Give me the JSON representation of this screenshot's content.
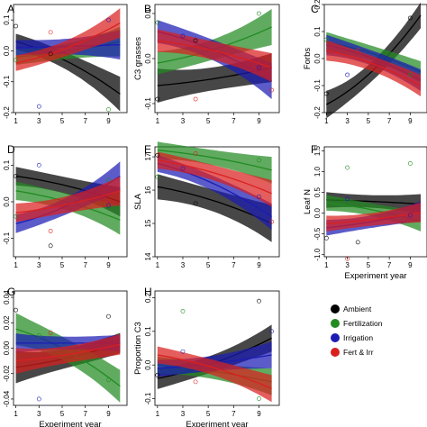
{
  "legend": [
    {
      "name": "Ambient",
      "color": "#000000"
    },
    {
      "name": "Fertilization",
      "color": "#228b22"
    },
    {
      "name": "Irrigation",
      "color": "#1c1cb4"
    },
    {
      "name": "Fert & Irr",
      "color": "#d92020"
    }
  ],
  "chart_data": [
    {
      "type": "line",
      "panel": "A",
      "xlabel": "",
      "ylabel": "",
      "ylim": [
        -0.2,
        0.15
      ],
      "yticks": [
        "-0.2",
        "-0.1",
        "0.0",
        "0.1"
      ],
      "xticks": [
        "1",
        "3",
        "5",
        "7",
        "9"
      ],
      "series": [
        {
          "name": "Ambient",
          "x": [
            1,
            10
          ],
          "y": [
            0.03,
            -0.14
          ],
          "band": [
            0.02,
            0.035
          ]
        },
        {
          "name": "Fertilization",
          "x": [
            1,
            10
          ],
          "y": [
            -0.02,
            0.03
          ],
          "band": [
            0.02,
            0.03
          ]
        },
        {
          "name": "Irrigation",
          "x": [
            1,
            10
          ],
          "y": [
            0.01,
            0.02
          ],
          "band": [
            0.02,
            0.03
          ]
        },
        {
          "name": "Fert & Irr",
          "x": [
            1,
            10
          ],
          "y": [
            -0.04,
            0.09
          ],
          "band": [
            0.02,
            0.03
          ]
        }
      ],
      "points": [
        {
          "x": 1,
          "y": 0.08
        },
        {
          "x": 1,
          "y": -0.03
        },
        {
          "x": 3,
          "y": -0.18
        },
        {
          "x": 4,
          "y": 0.06
        },
        {
          "x": 4,
          "y": -0.01
        },
        {
          "x": 9,
          "y": -0.19
        },
        {
          "x": 9,
          "y": 0.1
        }
      ]
    },
    {
      "type": "line",
      "panel": "B",
      "xlabel": "",
      "ylabel": "C3 grasses",
      "ylim": [
        -0.12,
        0.12
      ],
      "yticks": [
        "-0.1",
        "0.0",
        "0.1"
      ],
      "xticks": [
        "1",
        "3",
        "5",
        "7",
        "9"
      ],
      "series": [
        {
          "name": "Ambient",
          "x": [
            1,
            10
          ],
          "y": [
            -0.06,
            -0.02
          ],
          "band": [
            0.03,
            0.02
          ]
        },
        {
          "name": "Fertilization",
          "x": [
            1,
            10
          ],
          "y": [
            -0.01,
            0.07
          ],
          "band": [
            0.02,
            0.025
          ]
        },
        {
          "name": "Irrigation",
          "x": [
            1,
            10
          ],
          "y": [
            0.06,
            -0.05
          ],
          "band": [
            0.02,
            0.025
          ]
        },
        {
          "name": "Fert & Irr",
          "x": [
            1,
            10
          ],
          "y": [
            0.04,
            -0.02
          ],
          "band": [
            0.02,
            0.02
          ]
        }
      ],
      "points": [
        {
          "x": 1,
          "y": -0.09
        },
        {
          "x": 1,
          "y": 0.08
        },
        {
          "x": 3,
          "y": 0.05
        },
        {
          "x": 4,
          "y": -0.09
        },
        {
          "x": 4,
          "y": 0.04
        },
        {
          "x": 9,
          "y": 0.1
        },
        {
          "x": 9,
          "y": -0.02
        },
        {
          "x": 10,
          "y": -0.07
        }
      ]
    },
    {
      "type": "line",
      "panel": "C",
      "xlabel": "",
      "ylabel": "Forbs",
      "ylim": [
        -0.2,
        0.2
      ],
      "yticks": [
        "-0.2",
        "-0.1",
        "0.0",
        "0.1",
        "0.2"
      ],
      "xticks": [
        "1",
        "3",
        "5",
        "7",
        "9"
      ],
      "series": [
        {
          "name": "Ambient",
          "x": [
            1,
            10
          ],
          "y": [
            -0.17,
            0.16
          ],
          "band": [
            0.04,
            0.03
          ]
        },
        {
          "name": "Fertilization",
          "x": [
            1,
            10
          ],
          "y": [
            0.06,
            -0.05
          ],
          "band": [
            0.03,
            0.025
          ]
        },
        {
          "name": "Irrigation",
          "x": [
            1,
            10
          ],
          "y": [
            0.05,
            -0.08
          ],
          "band": [
            0.03,
            0.025
          ]
        },
        {
          "name": "Fert & Irr",
          "x": [
            1,
            10
          ],
          "y": [
            0.03,
            -0.1
          ],
          "band": [
            0.03,
            0.025
          ]
        }
      ],
      "points": [
        {
          "x": 1,
          "y": -0.13
        },
        {
          "x": 1,
          "y": 0.07
        },
        {
          "x": 3,
          "y": -0.06
        },
        {
          "x": 4,
          "y": 0.03
        },
        {
          "x": 9,
          "y": 0.15
        },
        {
          "x": 9,
          "y": -0.06
        }
      ]
    },
    {
      "type": "line",
      "panel": "D",
      "xlabel": "",
      "ylabel": "",
      "ylim": [
        -0.15,
        0.15
      ],
      "yticks": [
        "-0.1",
        "0.0",
        "0.1"
      ],
      "xticks": [
        "1",
        "3",
        "5",
        "7",
        "9"
      ],
      "series": [
        {
          "name": "Ambient",
          "x": [
            1,
            10
          ],
          "y": [
            0.07,
            0.0
          ],
          "band": [
            0.02,
            0.025
          ]
        },
        {
          "name": "Fertilization",
          "x": [
            1,
            10
          ],
          "y": [
            0.03,
            -0.05
          ],
          "band": [
            0.02,
            0.025
          ]
        },
        {
          "name": "Irrigation",
          "x": [
            1,
            10
          ],
          "y": [
            -0.06,
            0.07
          ],
          "band": [
            0.02,
            0.025
          ]
        },
        {
          "name": "Fert & Irr",
          "x": [
            1,
            10
          ],
          "y": [
            -0.03,
            0.03
          ],
          "band": [
            0.02,
            0.025
          ]
        }
      ],
      "points": [
        {
          "x": 1,
          "y": 0.07
        },
        {
          "x": 1,
          "y": -0.04
        },
        {
          "x": 3,
          "y": 0.1
        },
        {
          "x": 4,
          "y": -0.08
        },
        {
          "x": 4,
          "y": -0.12
        },
        {
          "x": 9,
          "y": 0.06
        },
        {
          "x": 9,
          "y": -0.01
        }
      ]
    },
    {
      "type": "line",
      "panel": "E",
      "xlabel": "",
      "ylabel": "SLA",
      "ylim": [
        14,
        17.3
      ],
      "yticks": [
        "14",
        "15",
        "16",
        "17"
      ],
      "xticks": [
        "1",
        "3",
        "5",
        "7",
        "9"
      ],
      "series": [
        {
          "name": "Ambient",
          "x": [
            1,
            10
          ],
          "y": [
            16.1,
            15.0
          ],
          "band": [
            0.3,
            0.35
          ]
        },
        {
          "name": "Fertilization",
          "x": [
            1,
            10
          ],
          "y": [
            17.2,
            16.6
          ],
          "band": [
            0.2,
            0.25
          ]
        },
        {
          "name": "Irrigation",
          "x": [
            1,
            10
          ],
          "y": [
            16.8,
            15.2
          ],
          "band": [
            0.2,
            0.25
          ]
        },
        {
          "name": "Fert & Irr",
          "x": [
            1,
            10
          ],
          "y": [
            16.9,
            15.9
          ],
          "band": [
            0.2,
            0.25
          ]
        }
      ],
      "points": [
        {
          "x": 1,
          "y": 17.05
        },
        {
          "x": 1,
          "y": 16.4
        },
        {
          "x": 3,
          "y": 16.65
        },
        {
          "x": 4,
          "y": 17.1
        },
        {
          "x": 4,
          "y": 15.6
        },
        {
          "x": 9,
          "y": 16.9
        },
        {
          "x": 9,
          "y": 15.8
        },
        {
          "x": 10,
          "y": 15.05
        }
      ]
    },
    {
      "type": "line",
      "panel": "F",
      "xlabel": "Experiment year",
      "ylabel": "Leaf N",
      "ylim": [
        -1.05,
        1.6
      ],
      "yticks": [
        "-1.0",
        "-0.5",
        "0.0",
        "0.5",
        "1.0",
        "1.5"
      ],
      "xticks": [
        "1",
        "3",
        "5",
        "7",
        "9"
      ],
      "series": [
        {
          "name": "Ambient",
          "x": [
            1,
            10
          ],
          "y": [
            0.32,
            0.22
          ],
          "band": [
            0.15,
            0.15
          ]
        },
        {
          "name": "Fertilization",
          "x": [
            1,
            10
          ],
          "y": [
            0.25,
            -0.2
          ],
          "band": [
            0.15,
            0.15
          ]
        },
        {
          "name": "Irrigation",
          "x": [
            1,
            10
          ],
          "y": [
            -0.35,
            0.05
          ],
          "band": [
            0.15,
            0.15
          ]
        },
        {
          "name": "Fert & Irr",
          "x": [
            1,
            10
          ],
          "y": [
            -0.25,
            0.02
          ],
          "band": [
            0.15,
            0.15
          ]
        }
      ],
      "points": [
        {
          "x": 1,
          "y": -0.6
        },
        {
          "x": 3,
          "y": 1.1
        },
        {
          "x": 3,
          "y": 0.35
        },
        {
          "x": 3,
          "y": -1.1
        },
        {
          "x": 4,
          "y": -0.7
        },
        {
          "x": 9,
          "y": 1.2
        },
        {
          "x": 9,
          "y": -0.05
        }
      ]
    },
    {
      "type": "line",
      "panel": "G",
      "xlabel": "Experiment year",
      "ylabel": "",
      "ylim": [
        -0.045,
        0.045
      ],
      "yticks": [
        "-0.04",
        "-0.02",
        "0.00",
        "0.02",
        "0.04"
      ],
      "xticks": [
        "1",
        "3",
        "5",
        "7",
        "9"
      ],
      "series": [
        {
          "name": "Ambient",
          "x": [
            1,
            10
          ],
          "y": [
            -0.015,
            0.004
          ],
          "band": [
            0.01,
            0.005
          ]
        },
        {
          "name": "Fertilization",
          "x": [
            1,
            10
          ],
          "y": [
            0.015,
            -0.03
          ],
          "band": [
            0.01,
            0.008
          ]
        },
        {
          "name": "Irrigation",
          "x": [
            1,
            10
          ],
          "y": [
            0.004,
            0.004
          ],
          "band": [
            0.006,
            0.004
          ]
        },
        {
          "name": "Fert & Irr",
          "x": [
            1,
            10
          ],
          "y": [
            -0.01,
            0.003
          ],
          "band": [
            0.008,
            0.005
          ]
        }
      ],
      "points": [
        {
          "x": 1,
          "y": 0.03
        },
        {
          "x": 3,
          "y": 0.01
        },
        {
          "x": 3,
          "y": -0.04
        },
        {
          "x": 4,
          "y": 0.012
        },
        {
          "x": 9,
          "y": 0.025
        },
        {
          "x": 9,
          "y": -0.025
        }
      ]
    },
    {
      "type": "line",
      "panel": "H",
      "xlabel": "Experiment year",
      "ylabel": "Proportion C3",
      "ylim": [
        -0.12,
        0.22
      ],
      "yticks": [
        "-0.1",
        "0.0",
        "0.1",
        "0.2"
      ],
      "xticks": [
        "1",
        "3",
        "5",
        "7",
        "9"
      ],
      "series": [
        {
          "name": "Ambient",
          "x": [
            1,
            10
          ],
          "y": [
            -0.04,
            0.08
          ],
          "band": [
            0.025,
            0.025
          ]
        },
        {
          "name": "Fertilization",
          "x": [
            1,
            10
          ],
          "y": [
            0.0,
            -0.05
          ],
          "band": [
            0.02,
            0.025
          ]
        },
        {
          "name": "Irrigation",
          "x": [
            1,
            10
          ],
          "y": [
            -0.01,
            0.03
          ],
          "band": [
            0.02,
            0.025
          ]
        },
        {
          "name": "Fert & Irr",
          "x": [
            1,
            10
          ],
          "y": [
            0.03,
            -0.07
          ],
          "band": [
            0.02,
            0.025
          ]
        }
      ],
      "points": [
        {
          "x": 1,
          "y": -0.03
        },
        {
          "x": 3,
          "y": 0.16
        },
        {
          "x": 3,
          "y": 0.04
        },
        {
          "x": 4,
          "y": -0.05
        },
        {
          "x": 9,
          "y": 0.19
        },
        {
          "x": 9,
          "y": -0.1
        },
        {
          "x": 10,
          "y": 0.1
        }
      ]
    }
  ]
}
